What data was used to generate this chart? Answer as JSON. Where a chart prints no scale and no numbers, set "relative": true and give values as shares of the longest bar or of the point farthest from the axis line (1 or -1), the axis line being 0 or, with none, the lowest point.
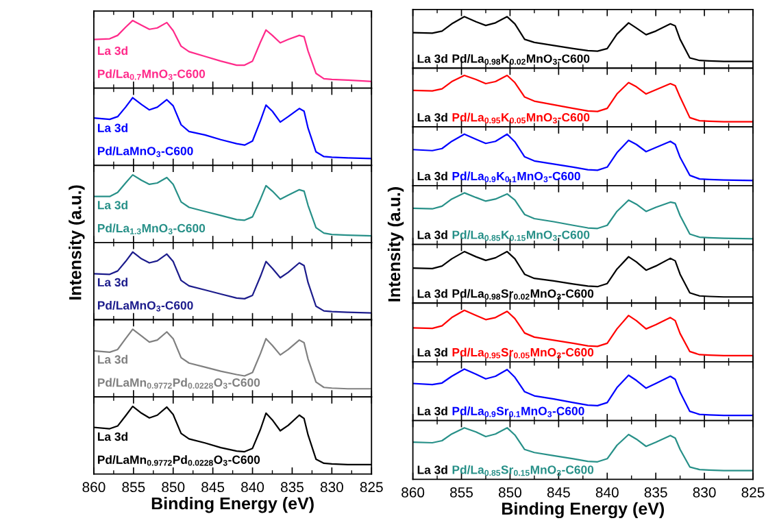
{
  "chart_data": [
    {
      "type": "line",
      "relative": true,
      "xlim": [
        860,
        825
      ],
      "xticks": [
        860,
        855,
        850,
        845,
        840,
        835,
        830,
        825
      ],
      "tick_labels": false,
      "annotations": [
        "La 3d",
        "Pd/La$_{0.7}$MnO$_{3}$-C600"
      ],
      "x": [
        860,
        858,
        857,
        856,
        855.1,
        854,
        853,
        852,
        850.8,
        850,
        849,
        848,
        846,
        844,
        842,
        841,
        840,
        839,
        838.3,
        837.5,
        836.5,
        835.5,
        834.1,
        833.5,
        833,
        832,
        831,
        830,
        828,
        825
      ],
      "series": [
        {
          "color": "#ff2a8a",
          "values": [
            0.72,
            0.73,
            0.78,
            0.9,
            1.0,
            0.93,
            0.87,
            0.89,
            0.97,
            0.85,
            0.62,
            0.54,
            0.47,
            0.4,
            0.34,
            0.34,
            0.4,
            0.68,
            0.86,
            0.78,
            0.67,
            0.72,
            0.78,
            0.76,
            0.55,
            0.22,
            0.14,
            0.13,
            0.12,
            0.1
          ]
        }
      ]
    },
    {
      "type": "line",
      "relative": true,
      "xlim": [
        860,
        825
      ],
      "xticks": [
        860,
        855,
        850,
        845,
        840,
        835,
        830,
        825
      ],
      "tick_labels": false,
      "annotations": [
        "La 3d",
        "Pd/LaMnO$_{3}$-C600"
      ],
      "x": [
        860,
        858,
        857,
        856,
        855.1,
        854,
        853,
        852,
        850.8,
        850,
        849,
        848,
        846,
        844,
        842,
        841,
        840,
        839,
        838.3,
        837.5,
        836.5,
        835.5,
        834.1,
        833.5,
        833,
        832,
        831,
        830,
        828,
        825
      ],
      "series": [
        {
          "color": "#0000ff",
          "values": [
            0.7,
            0.68,
            0.72,
            0.86,
            1.0,
            0.9,
            0.82,
            0.86,
            0.97,
            0.88,
            0.6,
            0.5,
            0.45,
            0.38,
            0.32,
            0.3,
            0.36,
            0.66,
            0.89,
            0.8,
            0.64,
            0.72,
            0.84,
            0.8,
            0.55,
            0.2,
            0.13,
            0.12,
            0.11,
            0.1
          ]
        }
      ]
    },
    {
      "type": "line",
      "relative": true,
      "xlim": [
        860,
        825
      ],
      "xticks": [
        860,
        855,
        850,
        845,
        840,
        835,
        830,
        825
      ],
      "tick_labels": false,
      "annotations": [
        "La 3d",
        "Pd/La$_{1.3}$MnO$_{3}$-C600"
      ],
      "x": [
        860,
        858,
        857,
        856,
        855.1,
        854,
        853,
        852,
        850.8,
        850,
        849,
        848,
        846,
        844,
        842,
        841,
        840,
        839,
        838.3,
        837.5,
        836.5,
        835.5,
        834.1,
        833.5,
        833,
        832,
        831,
        830,
        828,
        825
      ],
      "series": [
        {
          "color": "#279088",
          "values": [
            0.68,
            0.68,
            0.74,
            0.88,
            1.0,
            0.92,
            0.86,
            0.88,
            0.96,
            0.86,
            0.6,
            0.52,
            0.46,
            0.4,
            0.34,
            0.33,
            0.38,
            0.64,
            0.84,
            0.76,
            0.64,
            0.7,
            0.78,
            0.76,
            0.55,
            0.22,
            0.14,
            0.12,
            0.11,
            0.1
          ]
        }
      ]
    },
    {
      "type": "line",
      "relative": true,
      "xlim": [
        860,
        825
      ],
      "xticks": [
        860,
        855,
        850,
        845,
        840,
        835,
        830,
        825
      ],
      "tick_labels": false,
      "annotations": [
        "La 3d",
        "Pd/LaMnO$_{3}$-C600"
      ],
      "x": [
        860,
        858,
        857,
        856,
        855.1,
        854,
        853,
        852,
        850.8,
        850,
        849,
        848,
        846,
        844,
        842,
        841,
        840,
        839,
        838.3,
        837.5,
        836.5,
        835.5,
        834.1,
        833.5,
        833,
        832,
        831,
        830,
        828,
        825
      ],
      "series": [
        {
          "color": "#1c1c8c",
          "values": [
            0.68,
            0.67,
            0.72,
            0.86,
            1.0,
            0.9,
            0.84,
            0.87,
            0.97,
            0.86,
            0.58,
            0.5,
            0.44,
            0.38,
            0.32,
            0.31,
            0.36,
            0.64,
            0.86,
            0.76,
            0.62,
            0.7,
            0.84,
            0.8,
            0.55,
            0.2,
            0.13,
            0.12,
            0.11,
            0.1
          ]
        }
      ]
    },
    {
      "type": "line",
      "relative": true,
      "xlim": [
        860,
        825
      ],
      "xticks": [
        860,
        855,
        850,
        845,
        840,
        835,
        830,
        825
      ],
      "tick_labels": false,
      "annotations": [
        "La 3d",
        "Pd/LaMn$_{0.9772}$Pd$_{0.0228}$O$_{3}$-C600"
      ],
      "x": [
        860,
        858,
        857,
        856,
        855.1,
        854,
        853,
        852,
        850.8,
        850,
        849,
        848,
        846,
        844,
        842,
        841,
        840,
        839,
        838.3,
        837.5,
        836.5,
        835.5,
        834.1,
        833.5,
        833,
        832,
        831,
        830,
        828,
        825
      ],
      "series": [
        {
          "color": "#808080",
          "values": [
            0.68,
            0.66,
            0.7,
            0.86,
            1.0,
            0.9,
            0.81,
            0.84,
            0.96,
            0.86,
            0.58,
            0.5,
            0.44,
            0.38,
            0.33,
            0.31,
            0.36,
            0.64,
            0.86,
            0.76,
            0.62,
            0.7,
            0.84,
            0.8,
            0.56,
            0.22,
            0.14,
            0.13,
            0.12,
            0.12
          ]
        }
      ]
    },
    {
      "type": "line",
      "relative": true,
      "xlim": [
        860,
        825
      ],
      "xticks": [
        860,
        855,
        850,
        845,
        840,
        835,
        830,
        825
      ],
      "tick_labels": "x",
      "xlabel": "Binding Energy (eV)",
      "ylabel": "Intensity (a.u.)",
      "annotations": [
        "La 3d",
        "Pd/LaMn$_{0.9772}$Pd$_{0.0228}$O$_{3}$-C600"
      ],
      "x": [
        860,
        858,
        857,
        856,
        855.1,
        854,
        853,
        852,
        850.8,
        850,
        849,
        848,
        846,
        844,
        842,
        841,
        840,
        839,
        838.3,
        837.5,
        836.5,
        835.5,
        834.1,
        833.5,
        833,
        832,
        831,
        830,
        828,
        825
      ],
      "series": [
        {
          "color": "#000000",
          "values": [
            0.69,
            0.67,
            0.71,
            0.86,
            1.0,
            0.9,
            0.83,
            0.87,
            0.99,
            0.88,
            0.6,
            0.52,
            0.46,
            0.39,
            0.34,
            0.33,
            0.38,
            0.66,
            0.9,
            0.8,
            0.64,
            0.72,
            0.87,
            0.82,
            0.58,
            0.22,
            0.16,
            0.15,
            0.14,
            0.14
          ]
        }
      ]
    },
    {
      "type": "line",
      "relative": true,
      "xlim": [
        860,
        825
      ],
      "xticks": [
        860,
        855,
        850,
        845,
        840,
        835,
        830,
        825
      ],
      "tick_labels": false,
      "annotations": [
        "La 3d",
        "Pd/La$_{0.98}$K$_{0.02}$MnO$_{3}$-C600"
      ],
      "x": [
        860,
        858,
        857,
        856,
        854.7,
        853.5,
        852.5,
        851.5,
        850.3,
        849.5,
        848.5,
        847.5,
        845.5,
        843.5,
        842,
        841,
        840,
        839,
        837.8,
        837,
        836,
        835,
        833.5,
        833,
        832.5,
        831.5,
        830.5,
        829.5,
        828,
        825
      ],
      "series": [
        {
          "color": "#000000",
          "values": [
            0.69,
            0.68,
            0.72,
            0.86,
            1.0,
            0.9,
            0.83,
            0.88,
            1.0,
            0.86,
            0.56,
            0.5,
            0.44,
            0.38,
            0.34,
            0.33,
            0.38,
            0.66,
            0.88,
            0.78,
            0.65,
            0.72,
            0.86,
            0.82,
            0.56,
            0.2,
            0.15,
            0.14,
            0.13,
            0.13
          ]
        }
      ]
    },
    {
      "type": "line",
      "relative": true,
      "xlim": [
        860,
        825
      ],
      "xticks": [
        860,
        855,
        850,
        845,
        840,
        835,
        830,
        825
      ],
      "tick_labels": false,
      "annotations": [
        "La 3d",
        "Pd/La$_{0.95}$K$_{0.05}$MnO$_{3}$-C600"
      ],
      "x": [
        860,
        858,
        857,
        856,
        854.7,
        853.5,
        852.5,
        851.5,
        850.3,
        849.5,
        848.5,
        847.5,
        845.5,
        843.5,
        842,
        841,
        840,
        839,
        837.8,
        837,
        836,
        835,
        833.5,
        833,
        832.5,
        831.5,
        830.5,
        829.5,
        828,
        825
      ],
      "series": [
        {
          "color": "#ff0000",
          "values": [
            0.71,
            0.7,
            0.74,
            0.88,
            1.0,
            0.92,
            0.84,
            0.88,
            1.0,
            0.86,
            0.58,
            0.5,
            0.43,
            0.36,
            0.31,
            0.3,
            0.36,
            0.64,
            0.86,
            0.78,
            0.64,
            0.72,
            0.84,
            0.8,
            0.58,
            0.18,
            0.12,
            0.11,
            0.1,
            0.1
          ]
        }
      ]
    },
    {
      "type": "line",
      "relative": true,
      "xlim": [
        860,
        825
      ],
      "xticks": [
        860,
        855,
        850,
        845,
        840,
        835,
        830,
        825
      ],
      "tick_labels": false,
      "annotations": [
        "La 3d",
        "Pd/La$_{0.9}$K$_{0.1}$MnO$_{3}$-C600"
      ],
      "x": [
        860,
        858,
        857,
        856,
        854.7,
        853.5,
        852.5,
        851.5,
        850.3,
        849.5,
        848.5,
        847.5,
        845.5,
        843.5,
        842,
        841,
        840,
        839,
        837.8,
        837,
        836,
        835,
        833.5,
        833,
        832.5,
        831.5,
        830.5,
        829.5,
        828,
        825
      ],
      "series": [
        {
          "color": "#0000ff",
          "values": [
            0.7,
            0.68,
            0.72,
            0.86,
            1.0,
            0.9,
            0.82,
            0.86,
            1.0,
            0.85,
            0.56,
            0.48,
            0.42,
            0.36,
            0.31,
            0.3,
            0.36,
            0.64,
            0.88,
            0.8,
            0.66,
            0.74,
            0.86,
            0.8,
            0.55,
            0.2,
            0.13,
            0.12,
            0.11,
            0.1
          ]
        }
      ]
    },
    {
      "type": "line",
      "relative": true,
      "xlim": [
        860,
        825
      ],
      "xticks": [
        860,
        855,
        850,
        845,
        840,
        835,
        830,
        825
      ],
      "tick_labels": false,
      "annotations": [
        "La 3d",
        "Pd/La$_{0.85}$K$_{0.15}$MnO$_{3}$-C600"
      ],
      "x": [
        860,
        858,
        857,
        856,
        854.7,
        853.5,
        852.5,
        851.5,
        850.3,
        849.5,
        848.5,
        847.5,
        845.5,
        843.5,
        842,
        841,
        840,
        839,
        837.8,
        837,
        836,
        835,
        833.5,
        833,
        832.5,
        831.5,
        830.5,
        829.5,
        828,
        825
      ],
      "series": [
        {
          "color": "#279088",
          "values": [
            0.7,
            0.69,
            0.74,
            0.88,
            1.0,
            0.91,
            0.84,
            0.88,
            0.98,
            0.86,
            0.58,
            0.5,
            0.44,
            0.37,
            0.32,
            0.31,
            0.37,
            0.64,
            0.86,
            0.78,
            0.64,
            0.72,
            0.82,
            0.8,
            0.56,
            0.2,
            0.14,
            0.13,
            0.12,
            0.11
          ]
        }
      ]
    },
    {
      "type": "line",
      "relative": true,
      "xlim": [
        860,
        825
      ],
      "xticks": [
        860,
        855,
        850,
        845,
        840,
        835,
        830,
        825
      ],
      "tick_labels": false,
      "annotations": [
        "La 3d",
        "Pd/La$_{0.98}$Sr$_{0.02}$MnO$_{3}$-C600"
      ],
      "x": [
        860,
        858,
        857,
        856,
        854.7,
        853.5,
        852.5,
        851.5,
        850.3,
        849.5,
        848.5,
        847.5,
        845.5,
        843.5,
        842,
        841,
        840,
        839,
        837.8,
        837,
        836,
        835,
        833.5,
        833,
        832.5,
        831.5,
        830.5,
        829.5,
        828,
        825
      ],
      "series": [
        {
          "color": "#000000",
          "values": [
            0.68,
            0.67,
            0.72,
            0.86,
            1.0,
            0.9,
            0.83,
            0.88,
            1.0,
            0.86,
            0.56,
            0.48,
            0.43,
            0.37,
            0.33,
            0.32,
            0.38,
            0.66,
            0.9,
            0.8,
            0.64,
            0.72,
            0.87,
            0.82,
            0.56,
            0.2,
            0.14,
            0.13,
            0.12,
            0.12
          ]
        }
      ]
    },
    {
      "type": "line",
      "relative": true,
      "xlim": [
        860,
        825
      ],
      "xticks": [
        860,
        855,
        850,
        845,
        840,
        835,
        830,
        825
      ],
      "tick_labels": false,
      "annotations": [
        "La 3d",
        "Pd/La$_{0.95}$Sr$_{0.05}$MnO$_{3}$-C600"
      ],
      "x": [
        860,
        858,
        857,
        856,
        854.7,
        853.5,
        852.5,
        851.5,
        850.3,
        849.5,
        848.5,
        847.5,
        845.5,
        843.5,
        842,
        841,
        840,
        839,
        837.8,
        837,
        836,
        835,
        833.5,
        833,
        832.5,
        831.5,
        830.5,
        829.5,
        828,
        825
      ],
      "series": [
        {
          "color": "#ff0000",
          "values": [
            0.66,
            0.65,
            0.7,
            0.86,
            1.0,
            0.9,
            0.82,
            0.86,
            0.98,
            0.84,
            0.56,
            0.48,
            0.42,
            0.36,
            0.31,
            0.3,
            0.36,
            0.64,
            0.9,
            0.8,
            0.64,
            0.72,
            0.86,
            0.8,
            0.55,
            0.2,
            0.14,
            0.13,
            0.12,
            0.12
          ]
        }
      ]
    },
    {
      "type": "line",
      "relative": true,
      "xlim": [
        860,
        825
      ],
      "xticks": [
        860,
        855,
        850,
        845,
        840,
        835,
        830,
        825
      ],
      "tick_labels": false,
      "annotations": [
        "La 3d",
        "Pd/La$_{0.9}$Sr$_{0.1}$MnO$_{3}$-C600"
      ],
      "x": [
        860,
        858,
        857,
        856,
        854.7,
        853.5,
        852.5,
        851.5,
        850.3,
        849.5,
        848.5,
        847.5,
        845.5,
        843.5,
        842,
        841,
        840,
        839,
        837.8,
        837,
        836,
        835,
        833.5,
        833,
        832.5,
        831.5,
        830.5,
        829.5,
        828,
        825
      ],
      "series": [
        {
          "color": "#0000ff",
          "values": [
            0.72,
            0.7,
            0.73,
            0.86,
            1.0,
            0.9,
            0.81,
            0.86,
            0.99,
            0.84,
            0.56,
            0.48,
            0.42,
            0.35,
            0.3,
            0.29,
            0.35,
            0.64,
            0.88,
            0.78,
            0.63,
            0.72,
            0.86,
            0.8,
            0.55,
            0.18,
            0.12,
            0.11,
            0.1,
            0.1
          ]
        }
      ]
    },
    {
      "type": "line",
      "relative": true,
      "xlim": [
        860,
        825
      ],
      "xticks": [
        860,
        855,
        850,
        845,
        840,
        835,
        830,
        825
      ],
      "tick_labels": "x",
      "xlabel": "Binding Energy (eV)",
      "ylabel": "Intensity (a.u.)",
      "annotations": [
        "La 3d",
        "Pd/La$_{0.85}$Sr$_{0.15}$MnO$_{3}$-C600"
      ],
      "x": [
        860,
        858,
        857,
        856,
        854.7,
        853.5,
        852.5,
        851.5,
        850.3,
        849.5,
        848.5,
        847.5,
        845.5,
        843.5,
        842,
        841,
        840,
        839,
        837.8,
        837,
        836,
        835,
        833.5,
        833,
        832.5,
        831.5,
        830.5,
        829.5,
        828,
        825
      ],
      "series": [
        {
          "color": "#279088",
          "values": [
            0.72,
            0.71,
            0.75,
            0.88,
            1.0,
            0.92,
            0.83,
            0.88,
            1.0,
            0.86,
            0.58,
            0.52,
            0.46,
            0.4,
            0.35,
            0.34,
            0.4,
            0.66,
            0.87,
            0.78,
            0.64,
            0.72,
            0.85,
            0.8,
            0.58,
            0.24,
            0.19,
            0.18,
            0.17,
            0.17
          ]
        }
      ]
    }
  ]
}
